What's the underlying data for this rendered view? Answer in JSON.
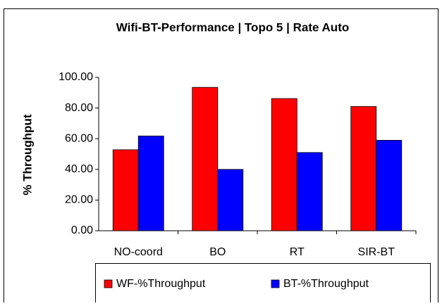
{
  "chart_data": {
    "type": "bar",
    "title": "Wifi-BT-Performance | Topo 5 | Rate Auto",
    "ylabel": "% Throughput",
    "categories": [
      "NO-coord",
      "BO",
      "RT",
      "SIR-BT"
    ],
    "series": [
      {
        "name": "WF-%Throughput",
        "color": "#ff0000",
        "values": [
          52.8,
          93.5,
          86.2,
          81.0
        ]
      },
      {
        "name": "BT-%Throughput",
        "color": "#0000ff",
        "values": [
          61.8,
          40.0,
          51.0,
          59.0
        ]
      }
    ],
    "ylim": [
      0,
      100
    ],
    "yticks": [
      {
        "value": 0,
        "label": "0.00"
      },
      {
        "value": 20,
        "label": "20.00"
      },
      {
        "value": 40,
        "label": "40.00"
      },
      {
        "value": 60,
        "label": "60.00"
      },
      {
        "value": 80,
        "label": "80.00"
      },
      {
        "value": 100,
        "label": "100.00"
      }
    ],
    "legend": "bottom"
  }
}
